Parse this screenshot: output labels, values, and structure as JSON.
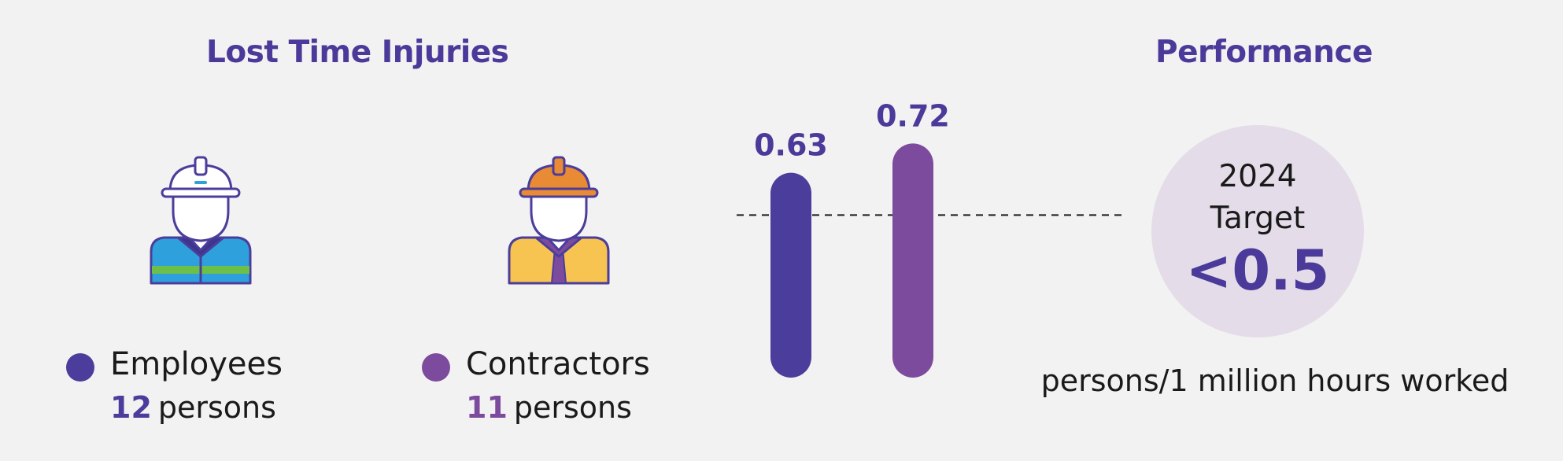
{
  "header": {
    "left_title": "Lost Time Injuries",
    "right_title": "Performance"
  },
  "colors": {
    "employees": "#4b3d9b",
    "contractors": "#7d4b9e",
    "title": "#4b3a9a",
    "target_bg": "#e4dde9"
  },
  "icons": {
    "employee": "worker-white-hardhat-icon",
    "contractor": "worker-orange-hardhat-icon"
  },
  "legend": {
    "employees": {
      "label": "Employees",
      "count": "12",
      "unit": "persons"
    },
    "contractors": {
      "label": "Contractors",
      "count": "11",
      "unit": "persons"
    }
  },
  "chart_data": {
    "type": "bar",
    "categories": [
      "Employees",
      "Contractors"
    ],
    "values": [
      0.63,
      0.72
    ],
    "value_labels": [
      "0.63",
      "0.72"
    ],
    "reference_line": 0.5,
    "ylim": [
      0,
      0.75
    ],
    "grid": false,
    "legend": "bottom-left"
  },
  "target": {
    "year": "2024",
    "label": "Target",
    "value": "<0.5",
    "units": "persons/1 million hours worked"
  }
}
